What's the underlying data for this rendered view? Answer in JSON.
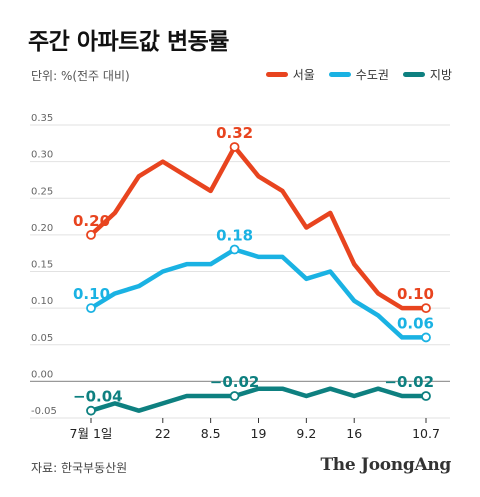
{
  "title": "주간 아파트값 변동률",
  "unit": "단위: %(전주 대비)",
  "source": "자료: 한국부동산원",
  "brand": "The JoongAng",
  "colors": {
    "seoul": "#e8441f",
    "capital": "#1ab2e3",
    "local": "#0e8080",
    "grid": "#e2e2e2",
    "zero": "#999999"
  },
  "chart_data": {
    "type": "line",
    "title": "주간 아파트값 변동률",
    "ylabel": "단위: %(전주 대비)",
    "xlabel": "",
    "ylim": [
      -0.05,
      0.35
    ],
    "yticks": [
      "0.35",
      "0.30",
      "0.25",
      "0.20",
      "0.15",
      "0.10",
      "0.05",
      "0.00",
      "-0.05"
    ],
    "ytick_values": [
      0.35,
      0.3,
      0.25,
      0.2,
      0.15,
      0.1,
      0.05,
      0.0,
      -0.05
    ],
    "xtick_labels": [
      {
        "i": 0,
        "label": "7월 1일"
      },
      {
        "i": 3,
        "label": "22"
      },
      {
        "i": 5,
        "label": "8.5"
      },
      {
        "i": 7,
        "label": "19"
      },
      {
        "i": 9,
        "label": "9.2"
      },
      {
        "i": 11,
        "label": "16"
      },
      {
        "i": 14,
        "label": "10.7"
      }
    ],
    "grid": true,
    "legend_position": "top-right",
    "series": [
      {
        "key": "seoul",
        "name": "서울",
        "values": [
          0.2,
          0.23,
          0.28,
          0.3,
          0.28,
          0.26,
          0.32,
          0.28,
          0.26,
          0.21,
          0.23,
          0.16,
          0.12,
          0.1,
          0.1
        ],
        "labels": [
          {
            "i": 0,
            "text": "0.20"
          },
          {
            "i": 6,
            "text": "0.32"
          },
          {
            "i": 14,
            "text": "0.10"
          }
        ]
      },
      {
        "key": "capital",
        "name": "수도권",
        "values": [
          0.1,
          0.12,
          0.13,
          0.15,
          0.16,
          0.16,
          0.18,
          0.17,
          0.17,
          0.14,
          0.15,
          0.11,
          0.09,
          0.06,
          0.06
        ],
        "labels": [
          {
            "i": 0,
            "text": "0.10"
          },
          {
            "i": 6,
            "text": "0.18"
          },
          {
            "i": 14,
            "text": "0.06"
          }
        ]
      },
      {
        "key": "local",
        "name": "지방",
        "values": [
          -0.04,
          -0.03,
          -0.04,
          -0.03,
          -0.02,
          -0.02,
          -0.02,
          -0.01,
          -0.01,
          -0.02,
          -0.01,
          -0.02,
          -0.01,
          -0.02,
          -0.02
        ],
        "labels": [
          {
            "i": 0,
            "text": "−0.04"
          },
          {
            "i": 6,
            "text": "−0.02"
          },
          {
            "i": 14,
            "text": "−0.02"
          }
        ]
      }
    ]
  }
}
